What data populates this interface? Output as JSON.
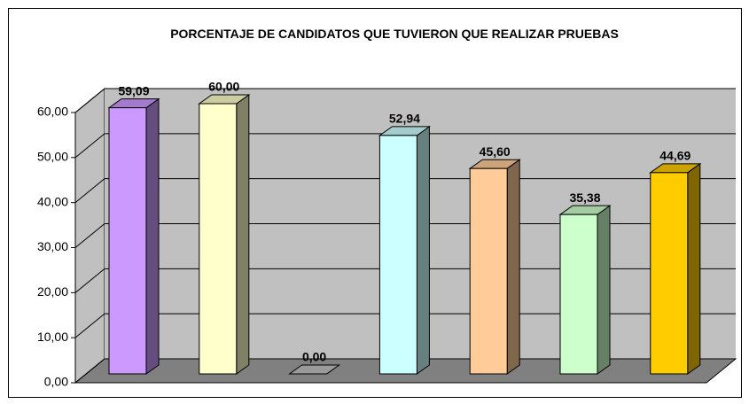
{
  "chart_data": {
    "type": "bar",
    "title": "PORCENTAJE DE CANDIDATOS QUE TUVIERON QUE REALIZAR PRUEBAS",
    "categories": [
      null,
      null,
      null,
      null,
      null,
      null,
      null
    ],
    "series": [
      {
        "values": [
          59.09,
          60.0,
          0.0,
          52.94,
          45.6,
          35.38,
          44.69
        ],
        "value_labels": [
          "59,09",
          "60,00",
          "0,00",
          "52,94",
          "45,60",
          "35,38",
          "44,69"
        ],
        "colors": [
          "#CC99FF",
          "#FFFFCC",
          "#C0C0C0",
          "#CCFFFF",
          "#FFCC99",
          "#CCFFCC",
          "#FFCC00"
        ]
      }
    ],
    "ylim": [
      0,
      60
    ],
    "yticks": [
      {
        "value": 0,
        "label": "0,00"
      },
      {
        "value": 10,
        "label": "10,00"
      },
      {
        "value": 20,
        "label": "20,00"
      },
      {
        "value": 30,
        "label": "30,00"
      },
      {
        "value": 40,
        "label": "40,00"
      },
      {
        "value": 50,
        "label": "50,00"
      },
      {
        "value": 60,
        "label": "60,00"
      }
    ],
    "grid": true
  }
}
